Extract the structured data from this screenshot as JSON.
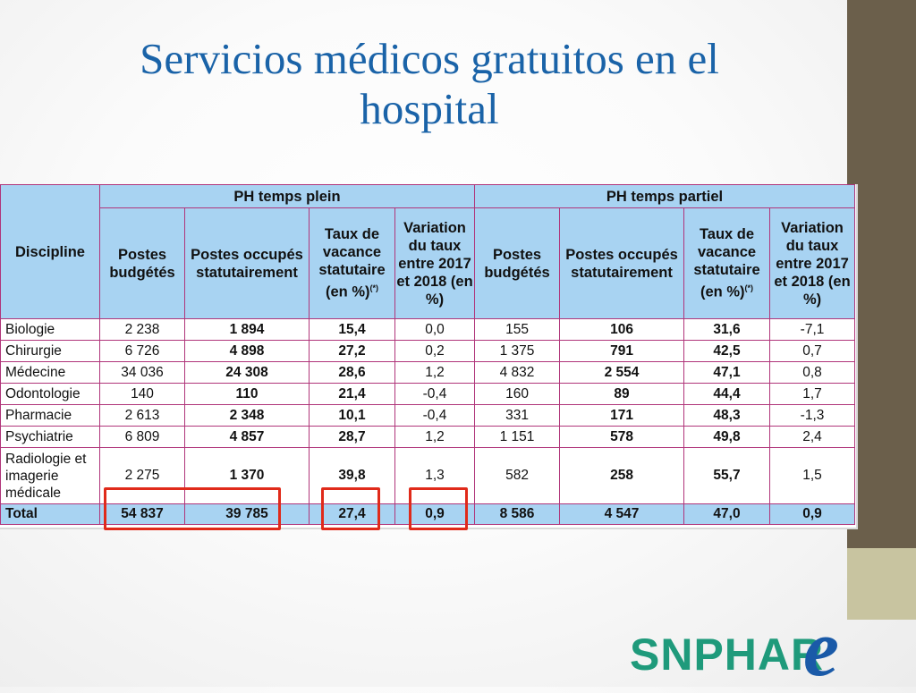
{
  "slide": {
    "title": "Servicios médicos gratuitos en el hospital"
  },
  "table": {
    "discipline_header": "Discipline",
    "group_full": "PH temps plein",
    "group_partial": "PH temps partiel",
    "col_postes_budgetes": "Postes budgétés",
    "col_postes_occupes": "Postes occupés statutairement",
    "col_taux_vacance": "Taux de vacance statutaire (en %)",
    "col_taux_note": "(*)",
    "col_variation": "Variation du taux entre 2017 et 2018 (en %)",
    "rows": [
      {
        "discipline": "Biologie",
        "fb": "2 238",
        "fo": "1 894",
        "ft": "15,4",
        "fv": "0,0",
        "pb": "155",
        "po": "106",
        "pt": "31,6",
        "pv": "-7,1"
      },
      {
        "discipline": "Chirurgie",
        "fb": "6 726",
        "fo": "4 898",
        "ft": "27,2",
        "fv": "0,2",
        "pb": "1 375",
        "po": "791",
        "pt": "42,5",
        "pv": "0,7"
      },
      {
        "discipline": "Médecine",
        "fb": "34 036",
        "fo": "24 308",
        "ft": "28,6",
        "fv": "1,2",
        "pb": "4 832",
        "po": "2 554",
        "pt": "47,1",
        "pv": "0,8"
      },
      {
        "discipline": "Odontologie",
        "fb": "140",
        "fo": "110",
        "ft": "21,4",
        "fv": "-0,4",
        "pb": "160",
        "po": "89",
        "pt": "44,4",
        "pv": "1,7"
      },
      {
        "discipline": "Pharmacie",
        "fb": "2 613",
        "fo": "2 348",
        "ft": "10,1",
        "fv": "-0,4",
        "pb": "331",
        "po": "171",
        "pt": "48,3",
        "pv": "-1,3"
      },
      {
        "discipline": "Psychiatrie",
        "fb": "6 809",
        "fo": "4 857",
        "ft": "28,7",
        "fv": "1,2",
        "pb": "1 151",
        "po": "578",
        "pt": "49,8",
        "pv": "2,4"
      },
      {
        "discipline": "Radiologie et imagerie médicale",
        "fb": "2 275",
        "fo": "1 370",
        "ft": "39,8",
        "fv": "1,3",
        "pb": "582",
        "po": "258",
        "pt": "55,7",
        "pv": "1,5"
      }
    ],
    "total": {
      "discipline": "Total",
      "fb": "54 837",
      "fo": "39 785",
      "ft": "27,4",
      "fv": "0,9",
      "pb": "8 586",
      "po": "4 547",
      "pt": "47,0",
      "pv": "0,9"
    }
  },
  "logo": {
    "text": "SNPHAR",
    "letter": "e",
    "colors": {
      "text": "#1f9a7b",
      "letter": "#1a5aa8"
    }
  },
  "colors": {
    "title": "#1a63a8",
    "header_fill": "#a8d3f2",
    "grid": "#b0357a",
    "highlight": "#e02a1a",
    "side_bar_dark": "#6b5f4b",
    "side_bar_light": "#c8c4a0"
  }
}
